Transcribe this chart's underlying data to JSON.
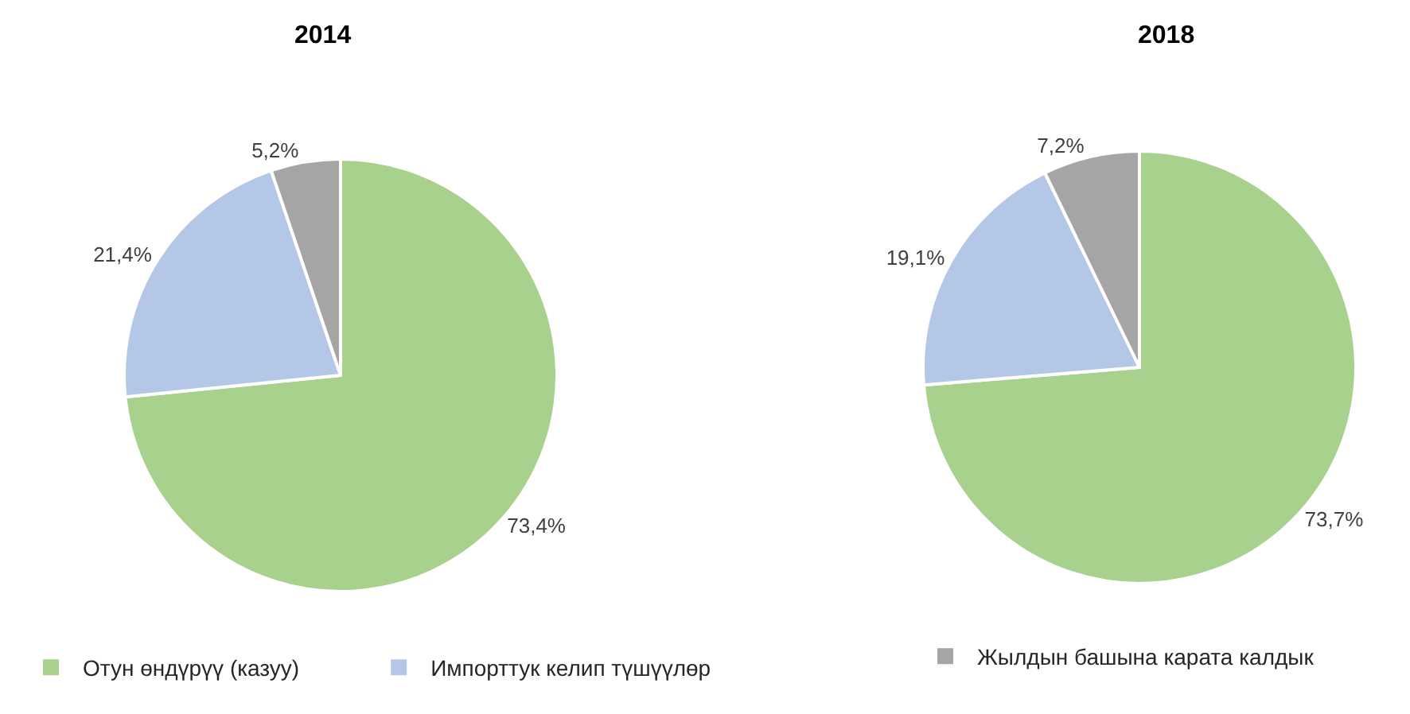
{
  "chart_data": [
    {
      "type": "pie",
      "title": "2014",
      "categories": [
        "Отун өндүрүү (казуу)",
        "Импорттук келип түшүүлөр",
        null
      ],
      "values": [
        73.4,
        21.4,
        5.2
      ],
      "colors": [
        "#a9d18e",
        "#b4c7e7",
        "#a5a5a5"
      ],
      "value_labels": [
        "73,4%",
        "21,4%",
        "5,2%"
      ],
      "legend": "bottom"
    },
    {
      "type": "pie",
      "title": "2018",
      "categories": [
        null,
        null,
        "Жылдын башына карата калдык"
      ],
      "values": [
        73.7,
        19.1,
        7.2
      ],
      "colors": [
        "#a9d18e",
        "#b4c7e7",
        "#a5a5a5"
      ],
      "value_labels": [
        "73,7%",
        "19,1%",
        "7,2%"
      ],
      "legend": "bottom"
    }
  ]
}
